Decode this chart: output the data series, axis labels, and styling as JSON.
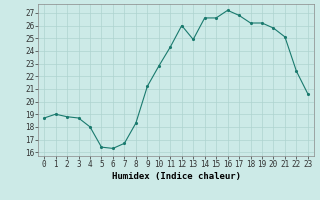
{
  "x": [
    0,
    1,
    2,
    3,
    4,
    5,
    6,
    7,
    8,
    9,
    10,
    11,
    12,
    13,
    14,
    15,
    16,
    17,
    18,
    19,
    20,
    21,
    22,
    23
  ],
  "y": [
    18.7,
    19.0,
    18.8,
    18.7,
    18.0,
    16.4,
    16.3,
    16.7,
    18.3,
    21.2,
    22.8,
    24.3,
    26.0,
    24.9,
    26.6,
    26.6,
    27.2,
    26.8,
    26.2,
    26.2,
    25.8,
    25.1,
    22.4,
    20.6
  ],
  "title": "",
  "xlabel": "Humidex (Indice chaleur)",
  "ylabel": "",
  "ylim": [
    15.7,
    27.7
  ],
  "xlim": [
    -0.5,
    23.5
  ],
  "yticks": [
    16,
    17,
    18,
    19,
    20,
    21,
    22,
    23,
    24,
    25,
    26,
    27
  ],
  "xticks": [
    0,
    1,
    2,
    3,
    4,
    5,
    6,
    7,
    8,
    9,
    10,
    11,
    12,
    13,
    14,
    15,
    16,
    17,
    18,
    19,
    20,
    21,
    22,
    23
  ],
  "line_color": "#1a7a6e",
  "marker_color": "#1a7a6e",
  "bg_color": "#cceae7",
  "grid_color": "#aed4d0",
  "xlabel_fontsize": 6.5,
  "tick_fontsize": 5.5
}
